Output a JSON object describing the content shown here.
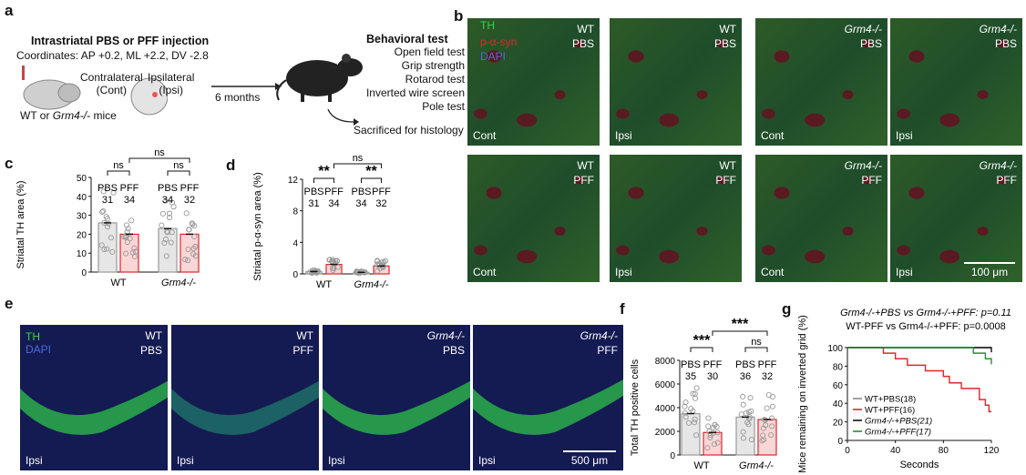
{
  "panels": {
    "a": "a",
    "b": "b",
    "c": "c",
    "d": "d",
    "e": "e",
    "f": "f",
    "g": "g"
  },
  "panel_a": {
    "injection_title": "Intrastriatal PBS or PFF injection",
    "coordinates": "Coordinates: AP +0.2, ML +2.2, DV -2.8",
    "contralateral": "Contralateral",
    "cont_abbrev": "(Cont)",
    "ipsilateral": "Ipsilateral",
    "ipsi_abbrev": "(Ipsi)",
    "mice_prefix": "WT or ",
    "mice_genotype": "Grm4-/-",
    "mice_suffix": " mice",
    "interval": "6 months",
    "behavioral_title": "Behavioral test",
    "tests": [
      "Open field test",
      "Grip strength",
      "Rotarod test",
      "Inverted wire screen",
      "Pole test"
    ],
    "sacrificed": "Sacrificed for histology"
  },
  "panel_b": {
    "legend": {
      "th": "TH",
      "psyn": "p-α-syn",
      "dapi": "DAPI"
    },
    "tiles": [
      {
        "genotype": "WT",
        "treatment": "PBS",
        "side": "Cont",
        "italic": false
      },
      {
        "genotype": "WT",
        "treatment": "PBS",
        "side": "Ipsi",
        "italic": false
      },
      {
        "genotype": "Grm4-/-",
        "treatment": "PBS",
        "side": "Cont",
        "italic": true
      },
      {
        "genotype": "Grm4-/-",
        "treatment": "PBS",
        "side": "Ipsi",
        "italic": true
      },
      {
        "genotype": "WT",
        "treatment": "PFF",
        "side": "Cont",
        "italic": false
      },
      {
        "genotype": "WT",
        "treatment": "PFF",
        "side": "Ipsi",
        "italic": false
      },
      {
        "genotype": "Grm4-/-",
        "treatment": "PFF",
        "side": "Cont",
        "italic": true
      },
      {
        "genotype": "Grm4-/-",
        "treatment": "PFF",
        "side": "Ipsi",
        "italic": true
      }
    ],
    "scale_bar": "100 μm"
  },
  "panel_e": {
    "legend": {
      "th": "TH",
      "dapi": "DAPI"
    },
    "tiles": [
      {
        "genotype": "WT",
        "treatment": "PBS",
        "side": "Ipsi"
      },
      {
        "genotype": "WT",
        "treatment": "PFF",
        "side": "Ipsi"
      },
      {
        "genotype": "Grm4-/-",
        "treatment": "PBS",
        "side": "Ipsi"
      },
      {
        "genotype": "Grm4-/-",
        "treatment": "PFF",
        "side": "Ipsi"
      }
    ],
    "scale_bar": "500 μm"
  },
  "chart_data": [
    {
      "id": "c",
      "type": "bar",
      "ylabel": "Striatal TH area (%)",
      "ylim": [
        0,
        50
      ],
      "yticks": [
        0,
        10,
        20,
        30,
        40,
        50
      ],
      "groups": [
        "WT",
        "Grm4-/-"
      ],
      "categories": [
        "WT PBS",
        "WT PFF",
        "Grm4-/- PBS",
        "Grm4-/- PFF"
      ],
      "treatment_labels": [
        "PBS",
        "PFF",
        "PBS",
        "PFF"
      ],
      "n": [
        "31",
        "34",
        "34",
        "32"
      ],
      "values": [
        26,
        20,
        23,
        20
      ],
      "significance": {
        "within_wt": "ns",
        "within_grm4": "ns",
        "pff_between": "ns"
      }
    },
    {
      "id": "d",
      "type": "bar",
      "ylabel": "Striatal p-α-syn area (%)",
      "ylim": [
        0,
        12
      ],
      "yticks": [
        0,
        4,
        8,
        12
      ],
      "groups": [
        "WT",
        "Grm4-/-"
      ],
      "categories": [
        "WT PBS",
        "WT PFF",
        "Grm4-/- PBS",
        "Grm4-/- PFF"
      ],
      "treatment_labels": [
        "PBS",
        "PFF",
        "PBS",
        "PFF"
      ],
      "n": [
        "31",
        "34",
        "34",
        "32"
      ],
      "values": [
        0.3,
        1.2,
        0.2,
        1.0
      ],
      "significance": {
        "within_wt": "**",
        "within_grm4": "**",
        "pff_between": "ns"
      }
    },
    {
      "id": "f",
      "type": "bar",
      "ylabel": "Total TH positive cells",
      "ylim": [
        0,
        8000
      ],
      "yticks": [
        0,
        2000,
        4000,
        6000,
        8000
      ],
      "groups": [
        "WT",
        "Grm4-/-"
      ],
      "categories": [
        "WT PBS",
        "WT PFF",
        "Grm4-/- PBS",
        "Grm4-/- PFF"
      ],
      "treatment_labels": [
        "PBS",
        "PFF",
        "PBS",
        "PFF"
      ],
      "n": [
        "35",
        "30",
        "36",
        "32"
      ],
      "values": [
        3500,
        1900,
        3200,
        3000
      ],
      "significance": {
        "within_wt": "***",
        "within_grm4": "ns",
        "pff_between": "***"
      }
    },
    {
      "id": "g",
      "type": "line",
      "title_line1": "Grm4-/-+PBS vs Grm4-/-+PFF: p=0.11",
      "title_line2": "WT-PFF vs Grm4-/-+PFF: p=0.0008",
      "xlabel": "Seconds",
      "ylabel": "Mice remaining on inverted grid (%)",
      "xlim": [
        0,
        120
      ],
      "ylim": [
        0,
        100
      ],
      "xticks": [
        0,
        40,
        80,
        120
      ],
      "yticks": [
        0,
        20,
        40,
        60,
        80,
        100
      ],
      "series": [
        {
          "name": "WT+PBS(18)",
          "color": "#8a8a8a",
          "x": [
            0,
            120
          ],
          "y": [
            100,
            100
          ]
        },
        {
          "name": "WT+PFF(16)",
          "color": "#e0262b",
          "x": [
            0,
            25,
            30,
            40,
            50,
            65,
            80,
            85,
            95,
            110,
            115,
            118,
            120
          ],
          "y": [
            100,
            100,
            94,
            88,
            81,
            75,
            69,
            62,
            56,
            44,
            38,
            31,
            31
          ]
        },
        {
          "name": "Grm4-/-+PBS(21)",
          "color": "#111111",
          "x": [
            0,
            110,
            120
          ],
          "y": [
            100,
            100,
            95
          ]
        },
        {
          "name": "Grm4-/-+PFF(17)",
          "color": "#2e8b3a",
          "x": [
            0,
            100,
            105,
            115,
            120
          ],
          "y": [
            100,
            100,
            94,
            88,
            82
          ]
        }
      ]
    }
  ],
  "colors": {
    "pbs": "#9a9a9a",
    "pff": "#e0262b",
    "th": "#3bd24a",
    "psyn": "#d62a2a",
    "dapi": "#4a6bd8"
  }
}
